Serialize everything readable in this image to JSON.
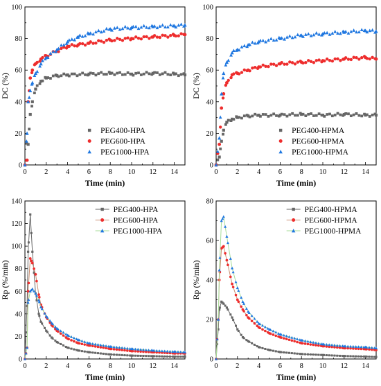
{
  "colors": {
    "PEG400": "#666666",
    "PEG600": "#ee2d2d",
    "PEG1000": "#1f77e0",
    "PEG600_line": "#c98f72",
    "PEG1000_line": "#a7dd9a"
  },
  "chart_data": [
    {
      "type": "scatter",
      "panel": "top-left",
      "xlabel": "Time (min)",
      "ylabel": "DC (%)",
      "xlim": [
        0,
        15
      ],
      "ylim": [
        0,
        100
      ],
      "xticks": [
        "0",
        "2",
        "4",
        "6",
        "8",
        "10",
        "12",
        "14"
      ],
      "yticks": [
        "0",
        "20",
        "40",
        "60",
        "80",
        "100"
      ],
      "legend_position": "bottom-right",
      "series": [
        {
          "name": "PEG400-HPA",
          "marker": "square",
          "x": [
            0.3,
            0.5,
            0.7,
            1,
            1.5,
            2,
            3,
            4,
            6,
            8,
            10,
            12,
            14,
            15
          ],
          "y": [
            13,
            32,
            40,
            48,
            53,
            55,
            56.5,
            57,
            57.5,
            58,
            57.5,
            58,
            57.5,
            57
          ]
        },
        {
          "name": "PEG600-HPA",
          "marker": "circle",
          "x": [
            0,
            0.2,
            0.3,
            0.5,
            0.7,
            1,
            1.5,
            2,
            3,
            4,
            5,
            6,
            8,
            10,
            12,
            14,
            15
          ],
          "y": [
            0,
            3,
            40,
            55,
            60,
            64,
            67,
            69,
            72,
            75,
            76,
            77,
            79,
            80,
            81,
            82,
            82.5
          ]
        },
        {
          "name": "PEG1000-HPA",
          "marker": "triangle",
          "x": [
            0,
            0.2,
            0.3,
            0.5,
            0.7,
            1,
            1.5,
            2,
            3,
            4,
            5,
            6,
            8,
            10,
            12,
            14,
            15
          ],
          "y": [
            0,
            20,
            40,
            47,
            52,
            58,
            64,
            68,
            73,
            78,
            81,
            83,
            86,
            87,
            87.5,
            88,
            88.5
          ]
        }
      ]
    },
    {
      "type": "scatter",
      "panel": "top-right",
      "xlabel": "Time (min)",
      "ylabel": "DC (%)",
      "xlim": [
        0,
        15
      ],
      "ylim": [
        0,
        100
      ],
      "xticks": [
        "0",
        "2",
        "4",
        "6",
        "8",
        "10",
        "12",
        "14"
      ],
      "yticks": [
        "0",
        "20",
        "40",
        "60",
        "80",
        "100"
      ],
      "legend_position": "bottom-right",
      "series": [
        {
          "name": "PEG400-HPMA",
          "marker": "square",
          "x": [
            0,
            0.3,
            0.5,
            0.7,
            1,
            1.5,
            2,
            3,
            4,
            6,
            8,
            10,
            12,
            14,
            15
          ],
          "y": [
            0,
            5,
            15,
            22,
            27,
            29,
            30,
            31,
            31.5,
            31.5,
            32,
            31.5,
            32,
            31.5,
            31.5
          ]
        },
        {
          "name": "PEG600-HPMA",
          "marker": "circle",
          "x": [
            0,
            0.3,
            0.5,
            0.7,
            1,
            1.5,
            2,
            3,
            4,
            6,
            8,
            10,
            12,
            14,
            15
          ],
          "y": [
            0,
            13,
            36,
            45,
            52,
            57,
            58,
            60,
            62,
            64,
            65,
            66,
            67,
            68,
            67
          ]
        },
        {
          "name": "PEG1000-HPMA",
          "marker": "triangle",
          "x": [
            0,
            0.3,
            0.5,
            0.7,
            1,
            1.5,
            2,
            3,
            4,
            6,
            8,
            10,
            12,
            14,
            15
          ],
          "y": [
            0,
            17,
            45,
            58,
            65,
            71,
            73,
            76,
            78,
            80,
            82,
            83,
            84,
            85,
            84.5
          ]
        }
      ]
    },
    {
      "type": "line",
      "panel": "bottom-left",
      "xlabel": "Time (min)",
      "ylabel": "Rp (%/min)",
      "xlim": [
        0,
        15
      ],
      "ylim": [
        0,
        140
      ],
      "xticks": [
        "0",
        "2",
        "4",
        "6",
        "8",
        "10",
        "12",
        "14"
      ],
      "yticks": [
        "0",
        "20",
        "40",
        "60",
        "80",
        "100",
        "120",
        "140"
      ],
      "legend_position": "top-right",
      "series": [
        {
          "name": "PEG400-HPA",
          "marker": "square",
          "x": [
            0,
            0.2,
            0.3,
            0.5,
            0.7,
            1,
            1.3,
            1.5,
            2,
            2.5,
            3,
            4,
            5,
            6,
            8,
            10,
            12,
            14,
            15
          ],
          "y": [
            0,
            47,
            95,
            128,
            95,
            58,
            40,
            33,
            25,
            19,
            15,
            10,
            7.5,
            6,
            4,
            3,
            2.5,
            2,
            2
          ]
        },
        {
          "name": "PEG600-HPA",
          "marker": "circle",
          "x": [
            0,
            0.2,
            0.3,
            0.5,
            0.7,
            1,
            1.3,
            1.5,
            2,
            2.5,
            3,
            4,
            5,
            6,
            8,
            10,
            12,
            14,
            15
          ],
          "y": [
            0,
            10,
            60,
            89,
            85,
            75,
            57,
            48,
            37,
            30,
            25,
            18,
            14,
            12,
            9,
            7,
            6,
            5,
            5
          ]
        },
        {
          "name": "PEG1000-HPA",
          "marker": "triangle",
          "x": [
            0,
            0.2,
            0.3,
            0.5,
            0.7,
            1,
            1.3,
            1.5,
            2,
            2.5,
            3,
            4,
            5,
            6,
            8,
            10,
            12,
            14,
            15
          ],
          "y": [
            0,
            10,
            50,
            60,
            62,
            58,
            52,
            46,
            38,
            32,
            27,
            21,
            17,
            14,
            11,
            9,
            7.5,
            6.5,
            6
          ]
        }
      ]
    },
    {
      "type": "line",
      "panel": "bottom-right",
      "xlabel": "Time (min)",
      "ylabel": "Rp (%/min)",
      "xlim": [
        0,
        15
      ],
      "ylim": [
        0,
        80
      ],
      "xticks": [
        "0",
        "2",
        "4",
        "6",
        "8",
        "10",
        "12",
        "14"
      ],
      "yticks": [
        "0",
        "20",
        "40",
        "60",
        "80"
      ],
      "legend_position": "top-right",
      "series": [
        {
          "name": "PEG400-HPMA",
          "marker": "square",
          "x": [
            0,
            0.2,
            0.3,
            0.5,
            0.7,
            1,
            1.5,
            2,
            2.5,
            3,
            4,
            5,
            6,
            8,
            10,
            12,
            14,
            15
          ],
          "y": [
            0,
            15,
            25,
            29,
            28,
            26,
            21,
            15,
            11,
            9,
            6,
            4.5,
            3.5,
            2.5,
            2,
            1.5,
            1.2,
            1
          ]
        },
        {
          "name": "PEG600-HPMA",
          "marker": "circle",
          "x": [
            0,
            0.2,
            0.3,
            0.5,
            0.7,
            1,
            1.5,
            2,
            2.5,
            3,
            4,
            5,
            6,
            8,
            10,
            12,
            14,
            15
          ],
          "y": [
            0,
            20,
            40,
            56,
            57,
            50,
            38,
            30,
            25,
            21,
            16,
            13,
            11,
            8,
            6.5,
            5.5,
            5,
            4.5
          ]
        },
        {
          "name": "PEG1000-HPMA",
          "marker": "triangle",
          "x": [
            0,
            0.2,
            0.3,
            0.5,
            0.7,
            1,
            1.5,
            2,
            2.5,
            3,
            4,
            5,
            6,
            8,
            10,
            12,
            14,
            15
          ],
          "y": [
            0,
            20,
            45,
            70,
            72,
            62,
            46,
            36,
            29,
            24,
            18,
            15,
            12.5,
            9.5,
            7.5,
            6.5,
            6,
            5.5
          ]
        }
      ]
    }
  ]
}
